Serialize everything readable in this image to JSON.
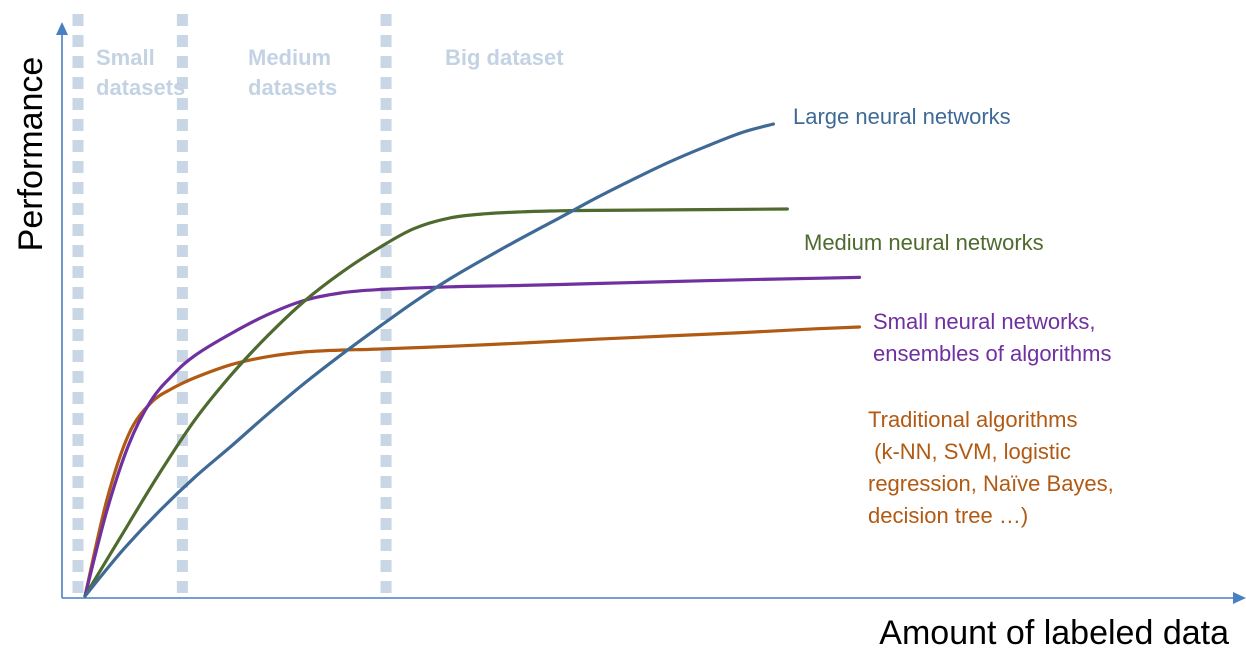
{
  "chart_data": {
    "type": "line",
    "title": "",
    "xlabel": "Amount of labeled data",
    "ylabel": "Performance",
    "xlim": [
      0,
      100
    ],
    "ylim": [
      0,
      100
    ],
    "grid": false,
    "axis_color": "#4a7fc1",
    "divider_color": "#c9d6e6",
    "region_label_color": "#c4d3e4",
    "dividers": [
      0,
      14.3,
      42.2
    ],
    "regions": [
      {
        "label_lines": [
          "Small",
          "datasets"
        ]
      },
      {
        "label_lines": [
          "Medium",
          "datasets"
        ]
      },
      {
        "label_lines": [
          "Big dataset"
        ]
      }
    ],
    "series": [
      {
        "name": "Large neural networks",
        "label_lines": [
          "Large neural networks"
        ],
        "color": "#3f6a96",
        "x": [
          0,
          5,
          10,
          15,
          20,
          25,
          30,
          35,
          40,
          45,
          50,
          55,
          60,
          65,
          70,
          75,
          80,
          85,
          90,
          94.3
        ],
        "y": [
          0,
          9.4,
          17.7,
          25.1,
          31.7,
          38.5,
          45.0,
          51.0,
          56.7,
          62.2,
          67.2,
          71.7,
          76.0,
          80.1,
          84.3,
          88.2,
          91.9,
          95.2,
          98.2,
          100
        ]
      },
      {
        "name": "Medium neural networks",
        "label_lines": [
          "Medium neural networks"
        ],
        "color": "#4e6a2e",
        "x": [
          0,
          5,
          10,
          15,
          20,
          25,
          30,
          35,
          40,
          45,
          50,
          55,
          60,
          65,
          70,
          80,
          96.2
        ],
        "y": [
          0,
          12.8,
          25.5,
          37.2,
          46.8,
          55.1,
          62.4,
          68.4,
          73.5,
          77.8,
          80.1,
          81.0,
          81.4,
          81.6,
          81.7,
          81.8,
          82.0
        ]
      },
      {
        "name": "Small neural networks, ensembles of algorithms",
        "label_lines": [
          "Small neural networks,",
          "ensembles of algorithms"
        ],
        "color": "#7030a0",
        "x": [
          0,
          3,
          6,
          9,
          12,
          15,
          20,
          25,
          30,
          35,
          40,
          50,
          60,
          70,
          80,
          90,
          100,
          106.1
        ],
        "y": [
          0,
          18.1,
          32.1,
          41.3,
          46.8,
          50.9,
          55.6,
          59.6,
          62.6,
          64.2,
          64.9,
          65.5,
          65.8,
          66.2,
          66.6,
          67.0,
          67.3,
          67.5
        ]
      },
      {
        "name": "Traditional algorithms (k-NN, SVM, logistic regression, Naïve Bayes, decision tree …)",
        "label_lines": [
          "Traditional algorithms",
          " (k-NN, SVM, logistic",
          "regression, Naïve Bayes,",
          "decision tree …)"
        ],
        "color": "#b15a13",
        "x": [
          0,
          3,
          6,
          9,
          12,
          15,
          20,
          25,
          30,
          35,
          40,
          50,
          60,
          70,
          80,
          90,
          100,
          106.1
        ],
        "y": [
          0,
          20.4,
          34.3,
          40.9,
          44.0,
          46.2,
          49.0,
          50.7,
          51.7,
          52.1,
          52.3,
          52.9,
          53.6,
          54.4,
          55.1,
          55.8,
          56.6,
          57.0
        ]
      }
    ]
  }
}
